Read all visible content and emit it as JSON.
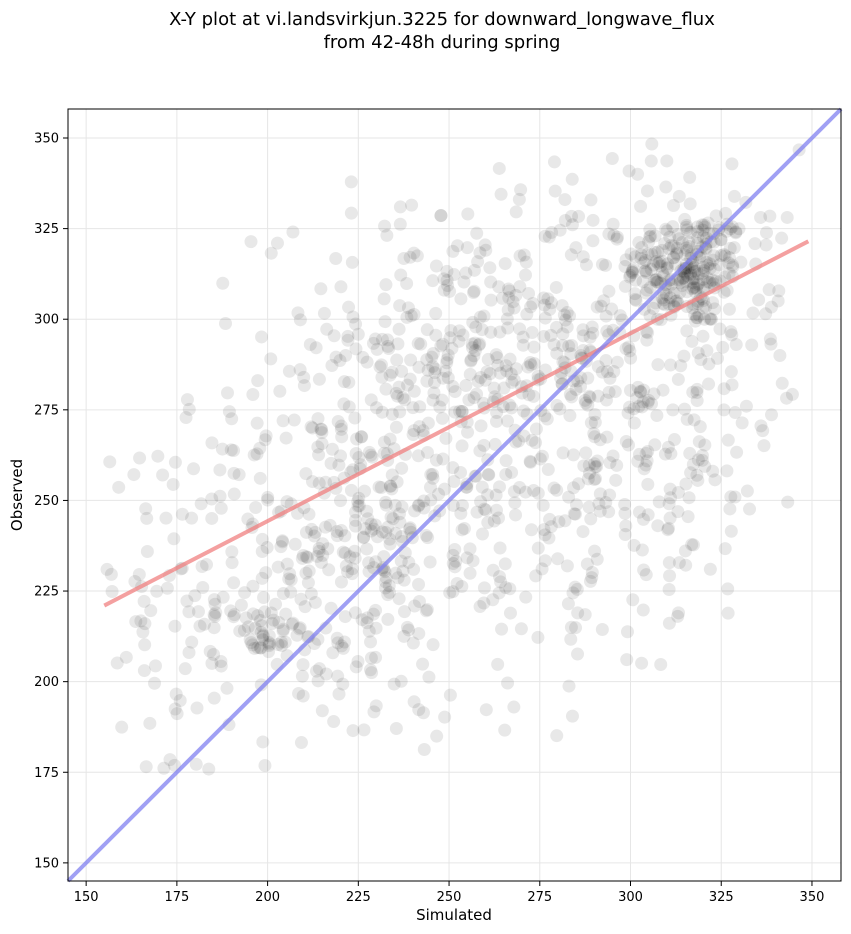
{
  "chart_data": {
    "type": "scatter",
    "title": "X-Y plot at vi.landsvirkjun.3225 for downward_longwave_flux",
    "subtitle": "from 42-48h during spring",
    "xlabel": "Simulated",
    "ylabel": "Observed",
    "xlim": [
      145,
      358
    ],
    "ylim": [
      145,
      358
    ],
    "xticks": [
      150,
      175,
      200,
      225,
      250,
      275,
      300,
      325,
      350
    ],
    "yticks": [
      150,
      175,
      200,
      225,
      250,
      275,
      300,
      325,
      350
    ],
    "grid": true,
    "point_color": "#000000",
    "point_opacity": 0.09,
    "clusters": [
      {
        "cx": 316,
        "cy": 314,
        "sx": 8,
        "sy": 8,
        "n": 200
      },
      {
        "cx": 300,
        "cy": 300,
        "sx": 24,
        "sy": 24,
        "n": 260
      },
      {
        "cx": 250,
        "cy": 285,
        "sx": 26,
        "sy": 22,
        "n": 320
      },
      {
        "cx": 215,
        "cy": 230,
        "sx": 22,
        "sy": 24,
        "n": 240
      },
      {
        "cx": 270,
        "cy": 250,
        "sx": 35,
        "sy": 28,
        "n": 240
      },
      {
        "cx": 200,
        "cy": 214,
        "sx": 4,
        "sy": 4,
        "n": 30
      },
      {
        "cx": 232,
        "cy": 242,
        "sx": 5,
        "sy": 5,
        "n": 30
      },
      {
        "cx": 175,
        "cy": 215,
        "sx": 15,
        "sy": 25,
        "n": 70
      },
      {
        "cx": 310,
        "cy": 255,
        "sx": 15,
        "sy": 15,
        "n": 60
      }
    ],
    "series": [
      {
        "type": "regression",
        "color": "#f08080",
        "x": [
          155,
          349
        ],
        "y": [
          221,
          321.5
        ]
      },
      {
        "type": "identity",
        "color": "#8080f0",
        "x": [
          145,
          358
        ],
        "y": [
          145,
          358
        ]
      }
    ]
  }
}
